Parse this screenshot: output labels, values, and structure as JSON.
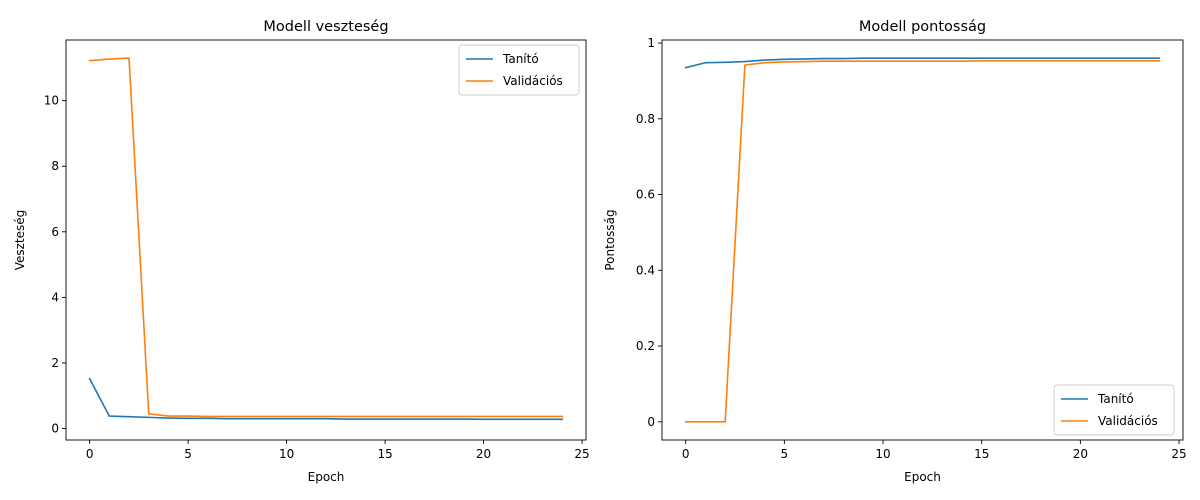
{
  "chart_data": [
    {
      "type": "line",
      "title": "Modell veszteség",
      "xlabel": "Epoch",
      "ylabel": "Veszteség",
      "xlim": [
        -1.2,
        25.2
      ],
      "ylim": [
        -0.35,
        11.85
      ],
      "xticks": [
        0,
        5,
        10,
        15,
        20,
        25
      ],
      "yticks": [
        0,
        2,
        4,
        6,
        8,
        10
      ],
      "grid": false,
      "legend_position": "top-right",
      "x": [
        0,
        1,
        2,
        3,
        4,
        5,
        6,
        7,
        8,
        9,
        10,
        11,
        12,
        13,
        14,
        15,
        16,
        17,
        18,
        19,
        20,
        21,
        22,
        23,
        24
      ],
      "series": [
        {
          "name": "Tanító",
          "color": "#1f77b4",
          "values": [
            1.52,
            0.38,
            0.36,
            0.34,
            0.32,
            0.31,
            0.31,
            0.3,
            0.3,
            0.3,
            0.3,
            0.3,
            0.3,
            0.29,
            0.29,
            0.29,
            0.29,
            0.29,
            0.29,
            0.29,
            0.28,
            0.28,
            0.28,
            0.28,
            0.28
          ]
        },
        {
          "name": "Validációs",
          "color": "#ff7f0e",
          "values": [
            11.22,
            11.27,
            11.3,
            0.45,
            0.38,
            0.38,
            0.37,
            0.37,
            0.37,
            0.37,
            0.37,
            0.37,
            0.37,
            0.37,
            0.37,
            0.37,
            0.37,
            0.37,
            0.37,
            0.37,
            0.37,
            0.37,
            0.37,
            0.37,
            0.37
          ]
        }
      ]
    },
    {
      "type": "line",
      "title": "Modell pontosság",
      "xlabel": "Epoch",
      "ylabel": "Pontosság",
      "xlim": [
        -1.2,
        25.2
      ],
      "ylim": [
        -0.048,
        1.008
      ],
      "xticks": [
        0,
        5,
        10,
        15,
        20,
        25
      ],
      "yticks": [
        0.0,
        0.2,
        0.4,
        0.6,
        0.8,
        1.0
      ],
      "grid": false,
      "legend_position": "bottom-right",
      "x": [
        0,
        1,
        2,
        3,
        4,
        5,
        6,
        7,
        8,
        9,
        10,
        11,
        12,
        13,
        14,
        15,
        16,
        17,
        18,
        19,
        20,
        21,
        22,
        23,
        24
      ],
      "series": [
        {
          "name": "Tanító",
          "color": "#1f77b4",
          "values": [
            0.935,
            0.948,
            0.949,
            0.951,
            0.955,
            0.957,
            0.958,
            0.959,
            0.959,
            0.96,
            0.96,
            0.96,
            0.96,
            0.96,
            0.96,
            0.96,
            0.96,
            0.96,
            0.96,
            0.96,
            0.96,
            0.96,
            0.96,
            0.96,
            0.96
          ]
        },
        {
          "name": "Validációs",
          "color": "#ff7f0e",
          "values": [
            0.0,
            0.0,
            0.0,
            0.942,
            0.948,
            0.95,
            0.951,
            0.952,
            0.952,
            0.952,
            0.952,
            0.952,
            0.952,
            0.952,
            0.952,
            0.953,
            0.953,
            0.953,
            0.953,
            0.953,
            0.953,
            0.953,
            0.953,
            0.953,
            0.953
          ]
        }
      ]
    }
  ]
}
